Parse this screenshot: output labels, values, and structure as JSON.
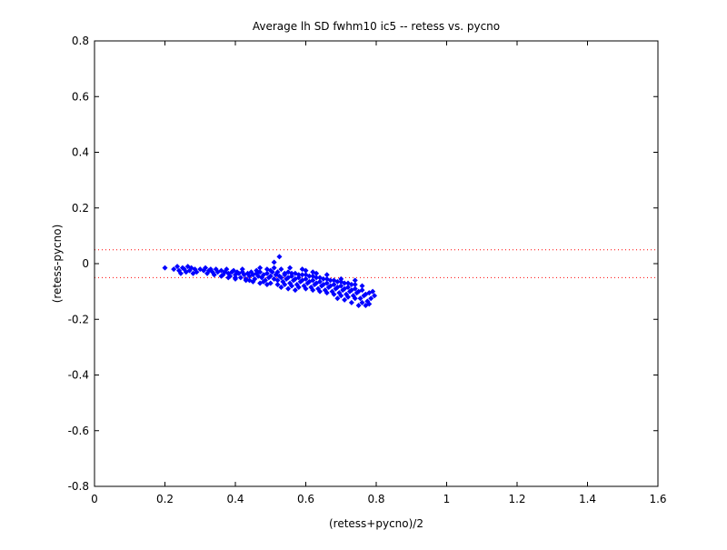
{
  "chart_data": {
    "type": "scatter",
    "title": "Average lh SD fwhm10 ic5 -- retess vs. pycno",
    "xlabel": "(retess+pycno)/2",
    "ylabel": "(retess-pycno)",
    "xlim": [
      0,
      1.6
    ],
    "ylim": [
      -0.8,
      0.8
    ],
    "xticks": [
      "0",
      "0.2",
      "0.4",
      "0.6",
      "0.8",
      "1",
      "1.2",
      "1.4",
      "1.6"
    ],
    "yticks": [
      "-0.8",
      "-0.6",
      "-0.4",
      "-0.2",
      "0",
      "0.2",
      "0.4",
      "0.6",
      "0.8"
    ],
    "grid": false,
    "marker": "diamond",
    "colors": {
      "points": "#0000ff",
      "reference_lines": "#ff0000",
      "axes": "#000000"
    },
    "reference_lines": [
      {
        "y": 0.05,
        "style": "dotted"
      },
      {
        "y": -0.05,
        "style": "dotted"
      }
    ],
    "series": [
      {
        "points": [
          [
            0.2,
            -0.015
          ],
          [
            0.225,
            -0.02
          ],
          [
            0.235,
            -0.01
          ],
          [
            0.24,
            -0.025
          ],
          [
            0.245,
            -0.035
          ],
          [
            0.25,
            -0.015
          ],
          [
            0.255,
            -0.02
          ],
          [
            0.26,
            -0.03
          ],
          [
            0.265,
            -0.01
          ],
          [
            0.27,
            -0.025
          ],
          [
            0.275,
            -0.015
          ],
          [
            0.28,
            -0.035
          ],
          [
            0.285,
            -0.02
          ],
          [
            0.29,
            -0.03
          ],
          [
            0.3,
            -0.02
          ],
          [
            0.31,
            -0.025
          ],
          [
            0.315,
            -0.015
          ],
          [
            0.32,
            -0.035
          ],
          [
            0.325,
            -0.025
          ],
          [
            0.33,
            -0.02
          ],
          [
            0.335,
            -0.03
          ],
          [
            0.34,
            -0.04
          ],
          [
            0.345,
            -0.02
          ],
          [
            0.35,
            -0.03
          ],
          [
            0.36,
            -0.025
          ],
          [
            0.365,
            -0.04
          ],
          [
            0.37,
            -0.03
          ],
          [
            0.375,
            -0.02
          ],
          [
            0.38,
            -0.035
          ],
          [
            0.385,
            -0.045
          ],
          [
            0.39,
            -0.03
          ],
          [
            0.395,
            -0.025
          ],
          [
            0.4,
            -0.04
          ],
          [
            0.405,
            -0.03
          ],
          [
            0.41,
            -0.035
          ],
          [
            0.415,
            -0.05
          ],
          [
            0.42,
            -0.03
          ],
          [
            0.425,
            -0.04
          ],
          [
            0.43,
            -0.055
          ],
          [
            0.435,
            -0.035
          ],
          [
            0.44,
            -0.045
          ],
          [
            0.445,
            -0.03
          ],
          [
            0.45,
            -0.04
          ],
          [
            0.455,
            -0.055
          ],
          [
            0.46,
            -0.035
          ],
          [
            0.465,
            -0.045
          ],
          [
            0.47,
            -0.03
          ],
          [
            0.475,
            -0.05
          ],
          [
            0.48,
            -0.04
          ],
          [
            0.485,
            -0.06
          ],
          [
            0.49,
            -0.035
          ],
          [
            0.495,
            -0.05
          ],
          [
            0.5,
            -0.045
          ],
          [
            0.505,
            -0.03
          ],
          [
            0.51,
            -0.055
          ],
          [
            0.515,
            -0.04
          ],
          [
            0.52,
            -0.06
          ],
          [
            0.525,
            -0.045
          ],
          [
            0.53,
            -0.05
          ],
          [
            0.535,
            -0.065
          ],
          [
            0.54,
            -0.04
          ],
          [
            0.545,
            -0.055
          ],
          [
            0.55,
            -0.05
          ],
          [
            0.555,
            -0.07
          ],
          [
            0.56,
            -0.045
          ],
          [
            0.565,
            -0.06
          ],
          [
            0.57,
            -0.055
          ],
          [
            0.575,
            -0.075
          ],
          [
            0.58,
            -0.05
          ],
          [
            0.585,
            -0.065
          ],
          [
            0.59,
            -0.06
          ],
          [
            0.595,
            -0.08
          ],
          [
            0.6,
            -0.055
          ],
          [
            0.605,
            -0.07
          ],
          [
            0.61,
            -0.065
          ],
          [
            0.615,
            -0.085
          ],
          [
            0.62,
            -0.06
          ],
          [
            0.625,
            -0.075
          ],
          [
            0.63,
            -0.07
          ],
          [
            0.635,
            -0.09
          ],
          [
            0.64,
            -0.065
          ],
          [
            0.645,
            -0.08
          ],
          [
            0.65,
            -0.075
          ],
          [
            0.655,
            -0.095
          ],
          [
            0.66,
            -0.07
          ],
          [
            0.665,
            -0.085
          ],
          [
            0.67,
            -0.08
          ],
          [
            0.675,
            -0.1
          ],
          [
            0.68,
            -0.075
          ],
          [
            0.685,
            -0.09
          ],
          [
            0.69,
            -0.085
          ],
          [
            0.695,
            -0.105
          ],
          [
            0.7,
            -0.08
          ],
          [
            0.705,
            -0.095
          ],
          [
            0.71,
            -0.09
          ],
          [
            0.715,
            -0.11
          ],
          [
            0.72,
            -0.085
          ],
          [
            0.725,
            -0.1
          ],
          [
            0.73,
            -0.095
          ],
          [
            0.735,
            -0.115
          ],
          [
            0.74,
            -0.09
          ],
          [
            0.745,
            -0.105
          ],
          [
            0.75,
            -0.1
          ],
          [
            0.755,
            -0.125
          ],
          [
            0.76,
            -0.095
          ],
          [
            0.765,
            -0.115
          ],
          [
            0.77,
            -0.11
          ],
          [
            0.775,
            -0.135
          ],
          [
            0.78,
            -0.105
          ],
          [
            0.785,
            -0.125
          ],
          [
            0.79,
            -0.1
          ],
          [
            0.795,
            -0.115
          ],
          [
            0.4,
            -0.05
          ],
          [
            0.42,
            -0.02
          ],
          [
            0.44,
            -0.06
          ],
          [
            0.46,
            -0.025
          ],
          [
            0.48,
            -0.065
          ],
          [
            0.5,
            -0.025
          ],
          [
            0.5,
            -0.07
          ],
          [
            0.52,
            -0.03
          ],
          [
            0.52,
            -0.075
          ],
          [
            0.54,
            -0.035
          ],
          [
            0.54,
            -0.075
          ],
          [
            0.56,
            -0.035
          ],
          [
            0.56,
            -0.08
          ],
          [
            0.58,
            -0.04
          ],
          [
            0.58,
            -0.085
          ],
          [
            0.6,
            -0.04
          ],
          [
            0.6,
            -0.09
          ],
          [
            0.62,
            -0.045
          ],
          [
            0.62,
            -0.095
          ],
          [
            0.64,
            -0.05
          ],
          [
            0.64,
            -0.1
          ],
          [
            0.66,
            -0.055
          ],
          [
            0.66,
            -0.105
          ],
          [
            0.68,
            -0.06
          ],
          [
            0.68,
            -0.11
          ],
          [
            0.7,
            -0.065
          ],
          [
            0.7,
            -0.115
          ],
          [
            0.72,
            -0.07
          ],
          [
            0.72,
            -0.12
          ],
          [
            0.74,
            -0.075
          ],
          [
            0.74,
            -0.125
          ],
          [
            0.76,
            -0.08
          ],
          [
            0.76,
            -0.14
          ],
          [
            0.77,
            -0.15
          ],
          [
            0.78,
            -0.145
          ],
          [
            0.75,
            -0.15
          ],
          [
            0.73,
            -0.14
          ],
          [
            0.71,
            -0.13
          ],
          [
            0.69,
            -0.125
          ],
          [
            0.55,
            -0.03
          ],
          [
            0.57,
            -0.035
          ],
          [
            0.59,
            -0.04
          ],
          [
            0.61,
            -0.045
          ],
          [
            0.63,
            -0.05
          ],
          [
            0.65,
            -0.055
          ],
          [
            0.67,
            -0.06
          ],
          [
            0.69,
            -0.065
          ],
          [
            0.71,
            -0.07
          ],
          [
            0.73,
            -0.075
          ],
          [
            0.53,
            -0.02
          ],
          [
            0.51,
            -0.015
          ],
          [
            0.49,
            -0.02
          ],
          [
            0.47,
            -0.015
          ],
          [
            0.525,
            0.025
          ],
          [
            0.51,
            0.005
          ],
          [
            0.6,
            -0.025
          ],
          [
            0.62,
            -0.03
          ],
          [
            0.555,
            -0.015
          ],
          [
            0.59,
            -0.02
          ],
          [
            0.63,
            -0.035
          ],
          [
            0.66,
            -0.04
          ],
          [
            0.7,
            -0.055
          ],
          [
            0.74,
            -0.06
          ],
          [
            0.36,
            -0.045
          ],
          [
            0.38,
            -0.05
          ],
          [
            0.4,
            -0.055
          ],
          [
            0.43,
            -0.06
          ],
          [
            0.45,
            -0.065
          ],
          [
            0.47,
            -0.07
          ],
          [
            0.49,
            -0.075
          ],
          [
            0.53,
            -0.085
          ],
          [
            0.55,
            -0.09
          ],
          [
            0.57,
            -0.095
          ]
        ]
      }
    ]
  }
}
